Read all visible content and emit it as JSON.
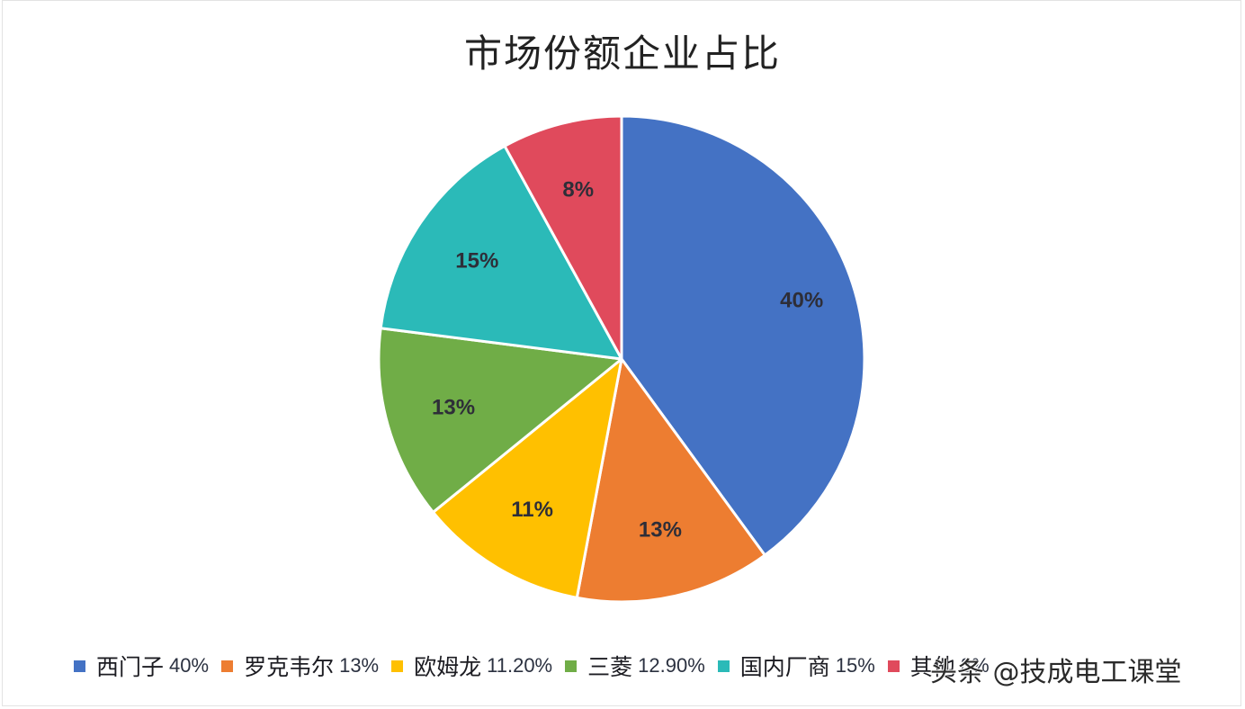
{
  "chart_data": {
    "type": "pie",
    "title": "市场份额企业占比",
    "categories": [
      "西门子",
      "罗克韦尔",
      "欧姆龙",
      "三菱",
      "国内厂商",
      "其他"
    ],
    "values": [
      40,
      13,
      11.2,
      12.9,
      15,
      8
    ],
    "data_labels": [
      "40%",
      "13%",
      "11%",
      "13%",
      "15%",
      "8%"
    ],
    "colors": [
      "#4472C4",
      "#ED7D31",
      "#FFC000",
      "#70AD47",
      "#2BBAB8",
      "#E04A5C"
    ],
    "start_angle_deg": 0,
    "direction": "clockwise",
    "legend_position": "bottom",
    "legend": [
      {
        "name": "西门子",
        "pct": "40%",
        "color": "#4472C4"
      },
      {
        "name": "罗克韦尔",
        "pct": "13%",
        "color": "#ED7D31"
      },
      {
        "name": "欧姆龙",
        "pct": "11.20%",
        "color": "#FFC000"
      },
      {
        "name": "三菱",
        "pct": "12.90%",
        "color": "#70AD47"
      },
      {
        "name": "国内厂商",
        "pct": "15%",
        "color": "#2BBAB8"
      },
      {
        "name": "其他",
        "pct": "8%",
        "color": "#E04A5C"
      }
    ]
  },
  "watermark": "头条 @技成电工课堂"
}
